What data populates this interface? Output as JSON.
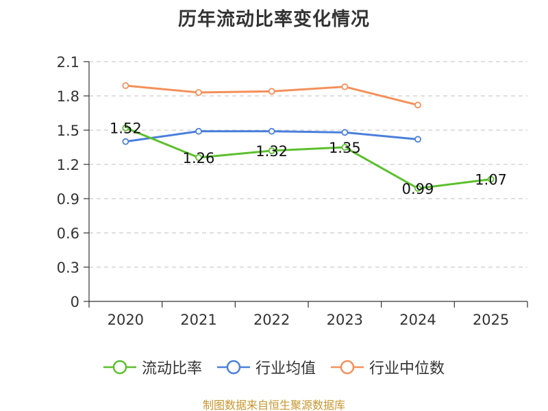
{
  "chart_data": {
    "type": "line",
    "title": "历年流动比率变化情况",
    "categories": [
      "2020",
      "2021",
      "2022",
      "2023",
      "2024",
      "2025"
    ],
    "series": [
      {
        "name": "流动比率",
        "color": "#5bbf2d",
        "values": [
          1.52,
          1.26,
          1.32,
          1.35,
          0.99,
          1.07
        ],
        "labels": [
          "1.52",
          "1.26",
          "1.32",
          "1.35",
          "0.99",
          "1.07"
        ],
        "show_labels": true
      },
      {
        "name": "行业均值",
        "color": "#4a7fdc",
        "values": [
          1.4,
          1.49,
          1.49,
          1.48,
          1.42,
          null
        ],
        "show_labels": false
      },
      {
        "name": "行业中位数",
        "color": "#f4905a",
        "values": [
          1.89,
          1.83,
          1.84,
          1.88,
          1.72,
          null
        ],
        "show_labels": false
      }
    ],
    "ylim": [
      0,
      2.1
    ],
    "yticks": [
      0,
      0.3,
      0.6,
      0.9,
      1.2,
      1.5,
      1.8,
      2.1
    ],
    "ytick_labels": [
      "0",
      "0.3",
      "0.6",
      "0.9",
      "1.2",
      "1.5",
      "1.8",
      "2.1"
    ],
    "grid": true,
    "legend_position": "bottom",
    "xlabel": "",
    "ylabel": ""
  },
  "footer": {
    "source": "制图数据来自恒生聚源数据库"
  }
}
